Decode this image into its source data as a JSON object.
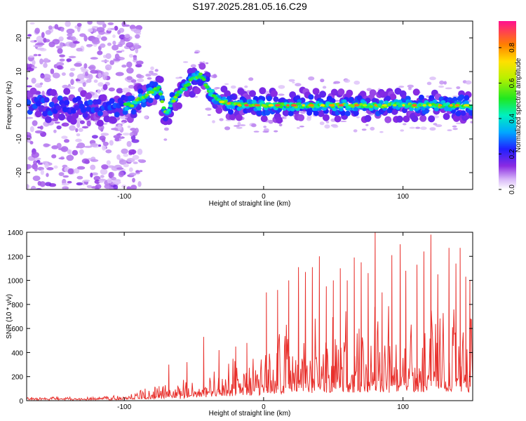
{
  "title": "S197.2025.281.05.16.C29",
  "chart_data": [
    {
      "type": "heatmap",
      "xlabel": "Height of straight line (km)",
      "ylabel": "Frequency (Hz)",
      "xlim": [
        -170,
        150
      ],
      "ylim": [
        -25,
        25
      ],
      "xticks": [
        -100,
        0,
        100
      ],
      "xtick_labels": [
        "-100",
        "0",
        "100"
      ],
      "yticks": [
        20,
        10,
        0,
        -10,
        -20
      ],
      "ytick_labels": [
        "20",
        "10",
        "0",
        "-10",
        "-20"
      ],
      "colorbar": {
        "label": "Normalized spectral amplitude",
        "range": [
          0.0,
          0.95
        ],
        "ticks": [
          0.0,
          0.2,
          0.4,
          0.6,
          0.8
        ],
        "tick_labels": [
          "0.0",
          "0.2",
          "0.4",
          "0.6",
          "0.8"
        ]
      },
      "ridge": [
        [
          -170,
          0
        ],
        [
          -130,
          -0.5
        ],
        [
          -110,
          -1
        ],
        [
          -100,
          0
        ],
        [
          -95,
          0
        ],
        [
          -88,
          2
        ],
        [
          -80,
          4
        ],
        [
          -75,
          5
        ],
        [
          -70,
          -3
        ],
        [
          -67,
          0
        ],
        [
          -60,
          4
        ],
        [
          -50,
          8
        ],
        [
          -45,
          9
        ],
        [
          -40,
          5
        ],
        [
          -35,
          2
        ],
        [
          -30,
          1
        ],
        [
          -20,
          0
        ],
        [
          0,
          0
        ],
        [
          40,
          0
        ],
        [
          80,
          0
        ],
        [
          120,
          0
        ],
        [
          150,
          0
        ]
      ],
      "scatter_region": [
        -170,
        -95
      ]
    },
    {
      "type": "line",
      "xlabel": "Height of straight line (km)",
      "ylabel": "SNR (10 * v/v)",
      "xlim": [
        -170,
        150
      ],
      "ylim": [
        0,
        1400
      ],
      "xticks": [
        -100,
        0,
        100
      ],
      "xtick_labels": [
        "-100",
        "0",
        "100"
      ],
      "yticks": [
        0,
        200,
        400,
        600,
        800,
        1000,
        1200,
        1400
      ],
      "ytick_labels": [
        "0",
        "200",
        "400",
        "600",
        "800",
        "1000",
        "1200",
        "1400"
      ],
      "color": "#e8302c",
      "envelope": [
        [
          -170,
          30
        ],
        [
          -120,
          35
        ],
        [
          -100,
          50
        ],
        [
          -90,
          80
        ],
        [
          -80,
          120
        ],
        [
          -70,
          200
        ],
        [
          -60,
          180
        ],
        [
          -50,
          220
        ],
        [
          -40,
          300
        ],
        [
          -30,
          350
        ],
        [
          -20,
          380
        ],
        [
          -10,
          400
        ],
        [
          0,
          520
        ],
        [
          10,
          620
        ],
        [
          20,
          700
        ],
        [
          40,
          720
        ],
        [
          60,
          760
        ],
        [
          80,
          820
        ],
        [
          100,
          800
        ],
        [
          120,
          820
        ],
        [
          150,
          780
        ]
      ],
      "peaks": [
        [
          -85,
          100
        ],
        [
          -78,
          115
        ],
        [
          -75,
          120
        ],
        [
          -72,
          120
        ],
        [
          -68,
          300
        ],
        [
          -55,
          320
        ],
        [
          -43,
          530
        ],
        [
          -32,
          420
        ],
        [
          -20,
          450
        ],
        [
          -12,
          480
        ],
        [
          2,
          900
        ],
        [
          10,
          920
        ],
        [
          18,
          1000
        ],
        [
          25,
          1110
        ],
        [
          30,
          1070
        ],
        [
          35,
          1110
        ],
        [
          40,
          1200
        ],
        [
          45,
          950
        ],
        [
          50,
          1000
        ],
        [
          55,
          1100
        ],
        [
          60,
          1000
        ],
        [
          65,
          1190
        ],
        [
          70,
          1150
        ],
        [
          75,
          1060
        ],
        [
          80,
          1400
        ],
        [
          85,
          900
        ],
        [
          92,
          1210
        ],
        [
          98,
          1300
        ],
        [
          102,
          1080
        ],
        [
          110,
          1130
        ],
        [
          115,
          1240
        ],
        [
          120,
          1380
        ],
        [
          125,
          1050
        ],
        [
          133,
          1270
        ],
        [
          138,
          1140
        ],
        [
          141,
          1270
        ],
        [
          145,
          1030
        ],
        [
          148,
          1000
        ]
      ]
    }
  ]
}
